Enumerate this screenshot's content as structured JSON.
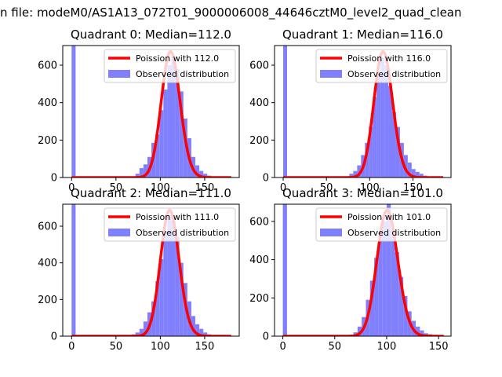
{
  "figure": {
    "suptitle": "n file: modeM0/AS1A13_072T01_9000006008_44646cztM0_level2_quad_clean"
  },
  "colors": {
    "hist": "#8080ff",
    "poisson": "#ff0000",
    "axes": "#000000",
    "legend_border": "#cccccc"
  },
  "chart_data": [
    {
      "type": "bar",
      "title": "Quadrant 0: Median=112.0",
      "xlim": [
        -10,
        189
      ],
      "ylim": [
        0,
        705
      ],
      "xticks": [
        0,
        50,
        100,
        150
      ],
      "yticks": [
        0,
        200,
        400,
        600
      ],
      "legend_loc": "upper right",
      "bin_width": 4.5,
      "hist_edges": [
        0,
        72,
        76.5,
        81,
        85.5,
        90,
        94.5,
        99,
        103.5,
        108,
        112.5,
        117,
        121.5,
        126,
        130.5,
        135,
        139.5,
        144,
        148.5,
        153,
        157.5
      ],
      "hist_values": [
        705,
        20,
        50,
        70,
        110,
        185,
        230,
        360,
        470,
        600,
        650,
        580,
        460,
        315,
        210,
        110,
        65,
        35,
        20,
        10
      ],
      "poisson_mean": 112.0,
      "poisson_x_range": [
        0,
        180
      ],
      "series": [
        {
          "name": "Poission with 112.0",
          "kind": "line"
        },
        {
          "name": "Observed distribution",
          "kind": "histogram"
        }
      ]
    },
    {
      "type": "bar",
      "title": "Quadrant 1: Median=116.0",
      "xlim": [
        -10,
        194
      ],
      "ylim": [
        0,
        705
      ],
      "xticks": [
        0,
        50,
        100,
        150
      ],
      "yticks": [
        0,
        200,
        400,
        600
      ],
      "legend_loc": "upper right",
      "bin_width": 4.5,
      "hist_edges": [
        0,
        76.5,
        81,
        85.5,
        90,
        94.5,
        99,
        103.5,
        108,
        112.5,
        117,
        121.5,
        126,
        130.5,
        135,
        139.5,
        144,
        148.5,
        153,
        157.5,
        162,
        166.5
      ],
      "hist_values": [
        705,
        20,
        35,
        65,
        120,
        185,
        270,
        430,
        550,
        640,
        600,
        490,
        350,
        270,
        185,
        120,
        80,
        45,
        30,
        20,
        10
      ],
      "poisson_mean": 116.0,
      "poisson_x_range": [
        0,
        185
      ],
      "series": [
        {
          "name": "Poission with 116.0",
          "kind": "line"
        },
        {
          "name": "Observed distribution",
          "kind": "histogram"
        }
      ]
    },
    {
      "type": "bar",
      "title": "Quadrant 2: Median=111.0",
      "xlim": [
        -10,
        189
      ],
      "ylim": [
        0,
        720
      ],
      "xticks": [
        0,
        50,
        100,
        150
      ],
      "yticks": [
        0,
        200,
        400,
        600
      ],
      "legend_loc": "upper right",
      "bin_width": 4.5,
      "hist_edges": [
        0,
        67.5,
        72,
        76.5,
        81,
        85.5,
        90,
        94.5,
        99,
        103.5,
        108,
        112.5,
        117,
        121.5,
        126,
        130.5,
        135,
        139.5,
        144,
        148.5,
        153,
        157.5
      ],
      "hist_values": [
        720,
        10,
        20,
        40,
        80,
        130,
        190,
        300,
        420,
        570,
        660,
        630,
        540,
        400,
        290,
        190,
        110,
        65,
        40,
        20,
        10
      ],
      "poisson_mean": 111.0,
      "poisson_x_range": [
        0,
        180
      ],
      "series": [
        {
          "name": "Poission with 111.0",
          "kind": "line"
        },
        {
          "name": "Observed distribution",
          "kind": "histogram"
        }
      ]
    },
    {
      "type": "bar",
      "title": "Quadrant 3: Median=101.0",
      "xlim": [
        -8,
        162
      ],
      "ylim": [
        0,
        690
      ],
      "xticks": [
        0,
        50,
        100,
        150
      ],
      "yticks": [
        0,
        200,
        400,
        600
      ],
      "legend_loc": "upper right",
      "bin_width": 4,
      "hist_edges": [
        0,
        68,
        72,
        76,
        80,
        84,
        88,
        92,
        96,
        100,
        104,
        108,
        112,
        116,
        120,
        124,
        128,
        132,
        136,
        140,
        144
      ],
      "hist_values": [
        690,
        20,
        50,
        100,
        190,
        290,
        410,
        540,
        600,
        690,
        560,
        440,
        310,
        210,
        130,
        80,
        50,
        30,
        15,
        10
      ],
      "poisson_mean": 101.0,
      "poisson_x_range": [
        0,
        155
      ],
      "series": [
        {
          "name": "Poission with 101.0",
          "kind": "line"
        },
        {
          "name": "Observed distribution",
          "kind": "histogram"
        }
      ]
    }
  ]
}
